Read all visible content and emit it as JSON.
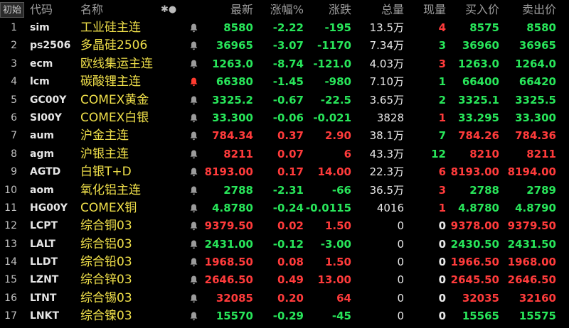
{
  "header": {
    "init_label": "初始",
    "code": "代码",
    "name": "名称",
    "star_icon": "✱●",
    "latest": "最新",
    "chg_pct": "涨幅%",
    "chg": "涨跌",
    "volume": "总量",
    "now_vol": "现量",
    "bid": "买入价",
    "ask": "卖出价"
  },
  "colors": {
    "up": "#ff3b3b",
    "down": "#28e65a",
    "flat": "#e8e8e8",
    "name": "#f0e04a",
    "bell_active": "#ff3b2f"
  },
  "rows": [
    {
      "idx": "1",
      "code": "sim",
      "name": "工业硅主连",
      "alert": false,
      "latest": "8580",
      "chg_pct": "-2.22",
      "chg": "-195",
      "volume": "13.5万",
      "now": "4",
      "bid": "8575",
      "ask": "8580",
      "dir": "down",
      "now_dir": "up"
    },
    {
      "idx": "2",
      "code": "ps2506",
      "name": "多晶硅2506",
      "alert": false,
      "latest": "36965",
      "chg_pct": "-3.07",
      "chg": "-1170",
      "volume": "7.34万",
      "now": "3",
      "bid": "36960",
      "ask": "36965",
      "dir": "down",
      "now_dir": "down"
    },
    {
      "idx": "3",
      "code": "ecm",
      "name": "欧线集运主连",
      "alert": false,
      "latest": "1263.0",
      "chg_pct": "-8.74",
      "chg": "-121.0",
      "volume": "4.03万",
      "now": "3",
      "bid": "1263.0",
      "ask": "1264.0",
      "dir": "down",
      "now_dir": "up"
    },
    {
      "idx": "4",
      "code": "lcm",
      "name": "碳酸锂主连",
      "alert": true,
      "latest": "66380",
      "chg_pct": "-1.45",
      "chg": "-980",
      "volume": "7.10万",
      "now": "1",
      "bid": "66400",
      "ask": "66420",
      "dir": "down",
      "now_dir": "down"
    },
    {
      "idx": "5",
      "code": "GC00Y",
      "name": "COMEX黄金",
      "alert": false,
      "latest": "3325.2",
      "chg_pct": "-0.67",
      "chg": "-22.5",
      "volume": "3.65万",
      "now": "2",
      "bid": "3325.1",
      "ask": "3325.5",
      "dir": "down",
      "now_dir": "down"
    },
    {
      "idx": "6",
      "code": "SI00Y",
      "name": "COMEX白银",
      "alert": false,
      "latest": "33.300",
      "chg_pct": "-0.06",
      "chg": "-0.021",
      "volume": "3828",
      "now": "1",
      "bid": "33.295",
      "ask": "33.300",
      "dir": "down",
      "now_dir": "up"
    },
    {
      "idx": "7",
      "code": "aum",
      "name": "沪金主连",
      "alert": false,
      "latest": "784.34",
      "chg_pct": "0.37",
      "chg": "2.90",
      "volume": "38.1万",
      "now": "7",
      "bid": "784.26",
      "ask": "784.36",
      "dir": "up",
      "now_dir": "down"
    },
    {
      "idx": "8",
      "code": "agm",
      "name": "沪银主连",
      "alert": false,
      "latest": "8211",
      "chg_pct": "0.07",
      "chg": "6",
      "volume": "43.3万",
      "now": "12",
      "bid": "8210",
      "ask": "8211",
      "dir": "up",
      "now_dir": "down"
    },
    {
      "idx": "9",
      "code": "AGTD",
      "name": "白银T+D",
      "alert": false,
      "latest": "8193.00",
      "chg_pct": "0.17",
      "chg": "14.00",
      "volume": "22.3万",
      "now": "6",
      "bid": "8193.00",
      "ask": "8194.00",
      "dir": "up",
      "now_dir": "up"
    },
    {
      "idx": "10",
      "code": "aom",
      "name": "氧化铝主连",
      "alert": false,
      "latest": "2788",
      "chg_pct": "-2.31",
      "chg": "-66",
      "volume": "36.5万",
      "now": "3",
      "bid": "2788",
      "ask": "2789",
      "dir": "down",
      "now_dir": "up"
    },
    {
      "idx": "11",
      "code": "HG00Y",
      "name": "COMEX铜",
      "alert": false,
      "latest": "4.8780",
      "chg_pct": "-0.24",
      "chg": "-0.0115",
      "volume": "4016",
      "now": "1",
      "bid": "4.8780",
      "ask": "4.8790",
      "dir": "down",
      "now_dir": "up"
    },
    {
      "idx": "12",
      "code": "LCPT",
      "name": "综合铜03",
      "alert": false,
      "latest": "9379.50",
      "chg_pct": "0.02",
      "chg": "1.50",
      "volume": "0",
      "now": "0",
      "bid": "9378.00",
      "ask": "9379.50",
      "dir": "up",
      "now_dir": "flat"
    },
    {
      "idx": "13",
      "code": "LALT",
      "name": "综合铝03",
      "alert": false,
      "latest": "2431.00",
      "chg_pct": "-0.12",
      "chg": "-3.00",
      "volume": "0",
      "now": "0",
      "bid": "2430.50",
      "ask": "2431.50",
      "dir": "down",
      "now_dir": "flat"
    },
    {
      "idx": "14",
      "code": "LLDT",
      "name": "综合铅03",
      "alert": false,
      "latest": "1968.50",
      "chg_pct": "0.08",
      "chg": "1.50",
      "volume": "0",
      "now": "0",
      "bid": "1966.50",
      "ask": "1968.00",
      "dir": "up",
      "now_dir": "flat"
    },
    {
      "idx": "15",
      "code": "LZNT",
      "name": "综合锌03",
      "alert": false,
      "latest": "2646.50",
      "chg_pct": "0.49",
      "chg": "13.00",
      "volume": "0",
      "now": "0",
      "bid": "2645.50",
      "ask": "2646.50",
      "dir": "up",
      "now_dir": "flat"
    },
    {
      "idx": "16",
      "code": "LTNT",
      "name": "综合锡03",
      "alert": false,
      "latest": "32085",
      "chg_pct": "0.20",
      "chg": "64",
      "volume": "0",
      "now": "0",
      "bid": "32035",
      "ask": "32160",
      "dir": "up",
      "now_dir": "flat"
    },
    {
      "idx": "17",
      "code": "LNKT",
      "name": "综合镍03",
      "alert": false,
      "latest": "15570",
      "chg_pct": "-0.29",
      "chg": "-45",
      "volume": "0",
      "now": "0",
      "bid": "15565",
      "ask": "15575",
      "dir": "down",
      "now_dir": "flat"
    }
  ]
}
